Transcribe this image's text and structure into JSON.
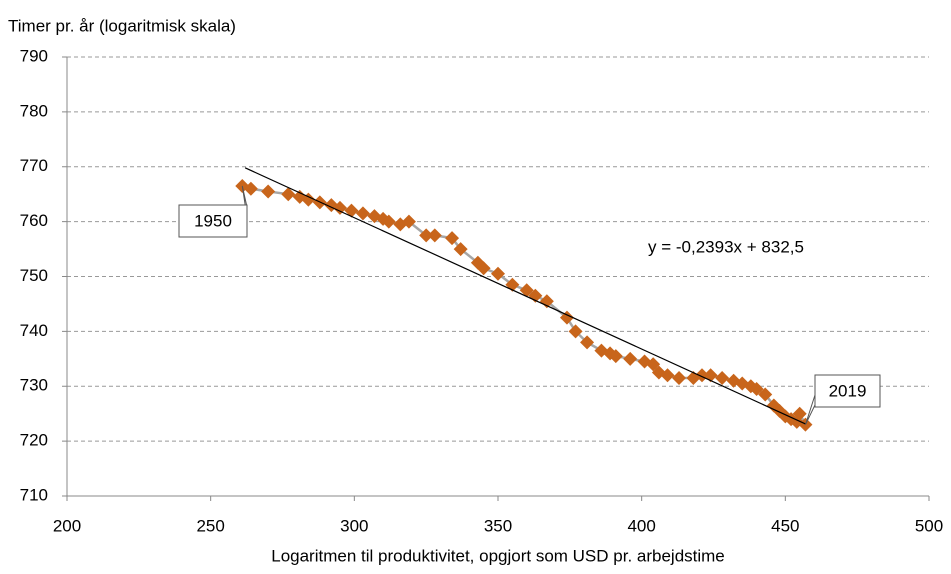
{
  "chart_data": {
    "type": "scatter",
    "y_label": "Timer pr. år (logaritmisk skala)",
    "x_label": "Logaritmen til produktivitet, opgjort som USD pr. arbejdstime",
    "x": [
      261,
      264,
      270,
      277,
      281,
      284,
      288,
      292,
      295,
      299,
      303,
      307,
      310,
      312,
      316,
      319,
      325,
      328,
      334,
      337,
      343,
      345,
      350,
      355,
      360,
      363,
      367,
      374,
      377,
      381,
      386,
      389,
      391,
      396,
      401,
      404,
      406,
      409,
      413,
      418,
      421,
      424,
      428,
      432,
      435,
      438,
      440,
      443,
      446,
      448,
      450,
      452,
      454,
      455,
      457
    ],
    "values": [
      766.5,
      766,
      765.5,
      765,
      764.5,
      764,
      763.5,
      763,
      762.5,
      762,
      761.5,
      761,
      760.5,
      760,
      759.5,
      760,
      757.5,
      757.5,
      757,
      755,
      752.5,
      751.5,
      750.5,
      748.5,
      747.5,
      746.5,
      745.5,
      742.5,
      740,
      738,
      736.5,
      736,
      735.5,
      735,
      734.5,
      734,
      732.5,
      732,
      731.5,
      731.5,
      732,
      732,
      731.5,
      731,
      730.5,
      730,
      729.5,
      728.5,
      726.5,
      725.5,
      724.5,
      724,
      723.5,
      725,
      723
    ],
    "color": "#c8651b",
    "line_color": "#a6a6a6",
    "xlim": [
      200,
      500
    ],
    "xticks": [
      200,
      250,
      300,
      350,
      400,
      450,
      500
    ],
    "ylim": [
      710,
      790
    ],
    "yticks": [
      710,
      720,
      730,
      740,
      750,
      760,
      770,
      780,
      790
    ],
    "grid": true,
    "trendline": {
      "slope": -0.2393,
      "intercept": 832.5,
      "x": [
        262,
        457
      ],
      "label": "y = -0,2393x + 832,5"
    },
    "annotations": [
      "1950",
      "2019"
    ]
  }
}
